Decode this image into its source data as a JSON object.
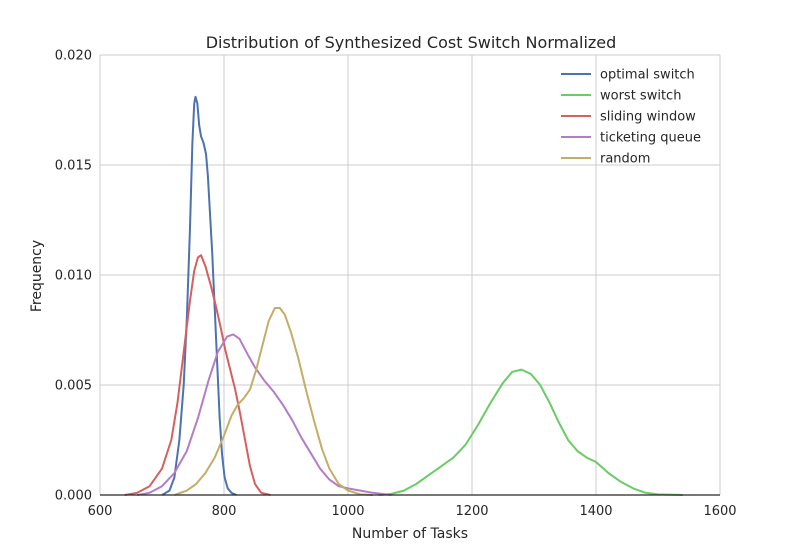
{
  "chart_data": {
    "type": "line",
    "title": "Distribution of Synthesized Cost Switch Normalized",
    "xlabel": "Number of Tasks",
    "ylabel": "Frequency",
    "xlim": [
      600,
      1600
    ],
    "ylim": [
      0,
      0.02
    ],
    "xticks": [
      "600",
      "800",
      "1000",
      "1200",
      "1400",
      "1600"
    ],
    "xtick_values": [
      600,
      800,
      1000,
      1200,
      1400,
      1600
    ],
    "yticks": [
      "0.000",
      "0.005",
      "0.010",
      "0.015",
      "0.020"
    ],
    "ytick_values": [
      0,
      0.005,
      0.01,
      0.015,
      0.02
    ],
    "grid": true,
    "legend_position": "top-right",
    "series": [
      {
        "name": "optimal switch",
        "color": "#4c72b0",
        "points": [
          [
            700,
            0
          ],
          [
            712,
            0.0002
          ],
          [
            720,
            0.0008
          ],
          [
            728,
            0.0025
          ],
          [
            735,
            0.005
          ],
          [
            740,
            0.008
          ],
          [
            745,
            0.012
          ],
          [
            749,
            0.016
          ],
          [
            752,
            0.0178
          ],
          [
            754,
            0.0181
          ],
          [
            757,
            0.0178
          ],
          [
            760,
            0.0168
          ],
          [
            763,
            0.0163
          ],
          [
            767,
            0.016
          ],
          [
            771,
            0.0155
          ],
          [
            774,
            0.0145
          ],
          [
            777,
            0.013
          ],
          [
            781,
            0.011
          ],
          [
            785,
            0.0085
          ],
          [
            789,
            0.006
          ],
          [
            793,
            0.0035
          ],
          [
            797,
            0.0018
          ],
          [
            801,
            0.0008
          ],
          [
            806,
            0.0003
          ],
          [
            812,
            0.0001
          ],
          [
            820,
            0
          ]
        ]
      },
      {
        "name": "worst switch",
        "color": "#6acc65",
        "points": [
          [
            1050,
            0
          ],
          [
            1070,
            5e-05
          ],
          [
            1090,
            0.0002
          ],
          [
            1110,
            0.0005
          ],
          [
            1130,
            0.0009
          ],
          [
            1150,
            0.0013
          ],
          [
            1170,
            0.0017
          ],
          [
            1190,
            0.0023
          ],
          [
            1210,
            0.0032
          ],
          [
            1230,
            0.0042
          ],
          [
            1250,
            0.0051
          ],
          [
            1265,
            0.0056
          ],
          [
            1280,
            0.0057
          ],
          [
            1295,
            0.0055
          ],
          [
            1310,
            0.005
          ],
          [
            1325,
            0.0042
          ],
          [
            1340,
            0.0033
          ],
          [
            1355,
            0.0025
          ],
          [
            1370,
            0.002
          ],
          [
            1385,
            0.0017
          ],
          [
            1400,
            0.0015
          ],
          [
            1420,
            0.001
          ],
          [
            1440,
            0.0006
          ],
          [
            1460,
            0.0003
          ],
          [
            1480,
            0.0001
          ],
          [
            1500,
            3e-05
          ],
          [
            1540,
            0
          ]
        ]
      },
      {
        "name": "sliding window",
        "color": "#d65f5f",
        "points": [
          [
            640,
            0
          ],
          [
            660,
            0.0001
          ],
          [
            680,
            0.0004
          ],
          [
            700,
            0.0012
          ],
          [
            715,
            0.0025
          ],
          [
            725,
            0.0042
          ],
          [
            735,
            0.0065
          ],
          [
            745,
            0.0088
          ],
          [
            752,
            0.0102
          ],
          [
            758,
            0.0108
          ],
          [
            763,
            0.0109
          ],
          [
            770,
            0.0104
          ],
          [
            778,
            0.0096
          ],
          [
            786,
            0.0087
          ],
          [
            794,
            0.0077
          ],
          [
            802,
            0.0066
          ],
          [
            810,
            0.0057
          ],
          [
            818,
            0.0048
          ],
          [
            826,
            0.0037
          ],
          [
            834,
            0.0025
          ],
          [
            842,
            0.0013
          ],
          [
            850,
            0.0005
          ],
          [
            860,
            0.0001
          ],
          [
            875,
            0
          ]
        ]
      },
      {
        "name": "ticketing queue",
        "color": "#b47cc7",
        "points": [
          [
            660,
            0
          ],
          [
            680,
            0.0001
          ],
          [
            700,
            0.0004
          ],
          [
            720,
            0.001
          ],
          [
            740,
            0.002
          ],
          [
            758,
            0.0035
          ],
          [
            775,
            0.0052
          ],
          [
            790,
            0.0065
          ],
          [
            805,
            0.0072
          ],
          [
            815,
            0.0073
          ],
          [
            825,
            0.0071
          ],
          [
            838,
            0.0064
          ],
          [
            850,
            0.0058
          ],
          [
            865,
            0.0052
          ],
          [
            880,
            0.0047
          ],
          [
            895,
            0.0041
          ],
          [
            910,
            0.0034
          ],
          [
            925,
            0.0026
          ],
          [
            940,
            0.0019
          ],
          [
            955,
            0.0012
          ],
          [
            970,
            0.0007
          ],
          [
            985,
            0.0004
          ],
          [
            1000,
            0.0003
          ],
          [
            1020,
            0.0002
          ],
          [
            1040,
            0.0001
          ],
          [
            1070,
            0
          ]
        ]
      },
      {
        "name": "random",
        "color": "#c4ad66",
        "points": [
          [
            720,
            0
          ],
          [
            740,
            0.0002
          ],
          [
            755,
            0.0005
          ],
          [
            770,
            0.001
          ],
          [
            785,
            0.0017
          ],
          [
            800,
            0.0027
          ],
          [
            812,
            0.0036
          ],
          [
            822,
            0.0041
          ],
          [
            832,
            0.0044
          ],
          [
            842,
            0.0048
          ],
          [
            852,
            0.0057
          ],
          [
            862,
            0.0068
          ],
          [
            872,
            0.0079
          ],
          [
            882,
            0.0085
          ],
          [
            890,
            0.0085
          ],
          [
            898,
            0.0082
          ],
          [
            908,
            0.0074
          ],
          [
            920,
            0.0062
          ],
          [
            932,
            0.0048
          ],
          [
            945,
            0.0034
          ],
          [
            958,
            0.0021
          ],
          [
            970,
            0.0012
          ],
          [
            985,
            0.0005
          ],
          [
            1000,
            0.0002
          ],
          [
            1020,
            3e-05
          ],
          [
            1040,
            0
          ]
        ]
      }
    ]
  }
}
